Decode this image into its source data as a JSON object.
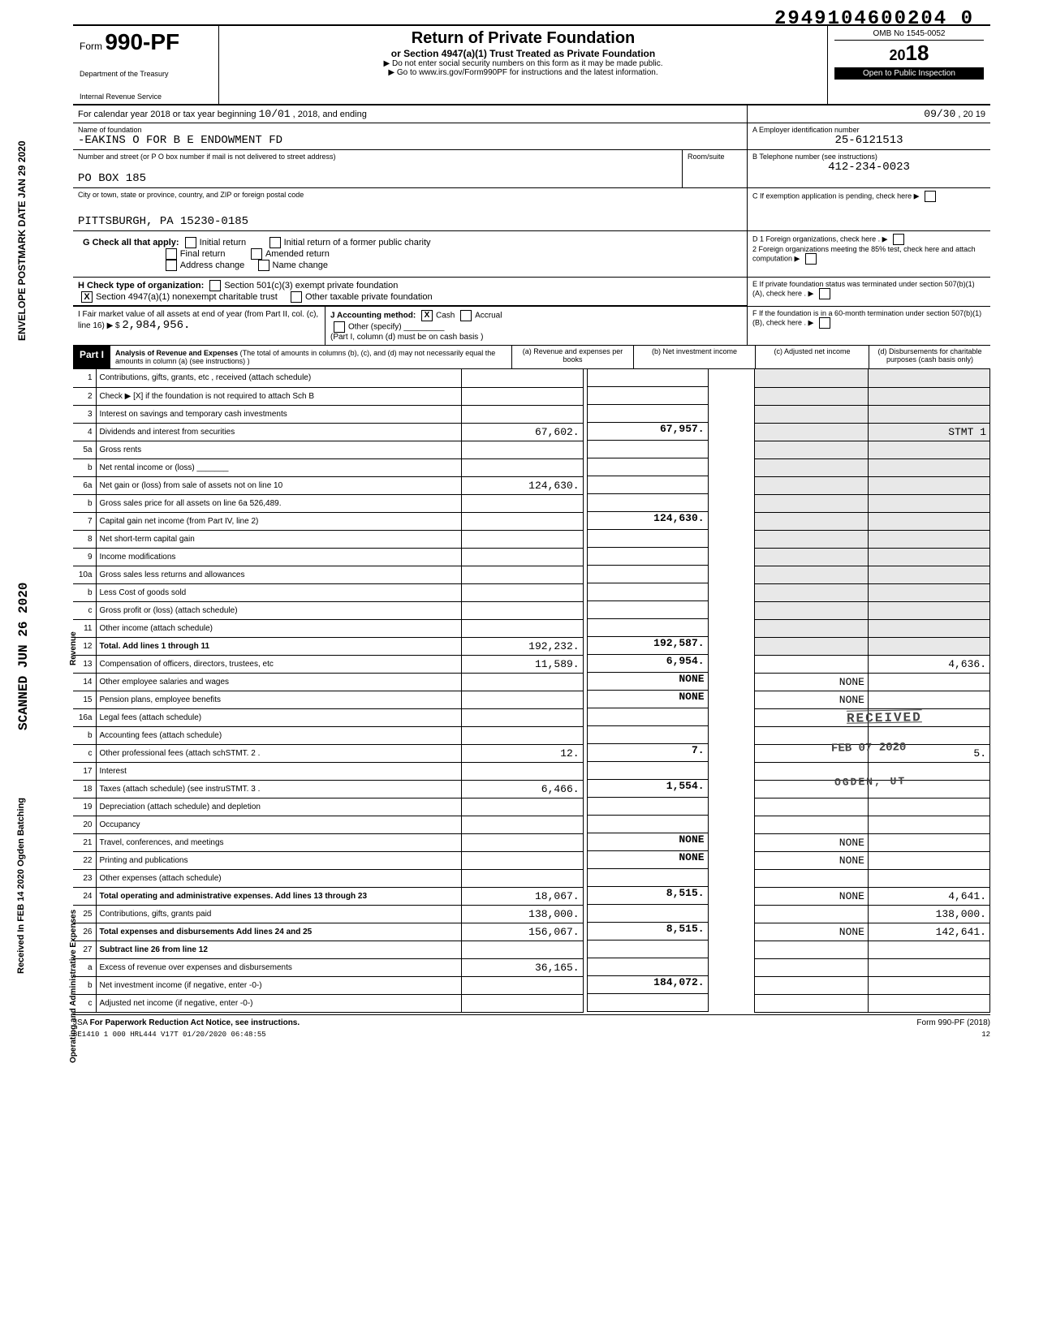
{
  "top_number": "2949104600204 0",
  "form": {
    "number": "990-PF",
    "prefix": "Form",
    "dept1": "Department of the Treasury",
    "dept2": "Internal Revenue Service",
    "title": "Return of Private Foundation",
    "subtitle": "or Section 4947(a)(1) Trust Treated as Private Foundation",
    "note1": "▶ Do not enter social security numbers on this form as it may be made public.",
    "note2": "▶ Go to www.irs.gov/Form990PF for instructions and the latest information.",
    "omb": "OMB No 1545-0052",
    "year": "2018",
    "year_prefix": "20",
    "open": "Open to Public Inspection"
  },
  "period": {
    "label": "For calendar year 2018 or tax year beginning",
    "begin": "10/01",
    "mid": ", 2018, and ending",
    "end": "09/30",
    "end_year": ", 20 19"
  },
  "foundation": {
    "name_label": "Name of foundation",
    "name": "-EAKINS O FOR B E ENDOWMENT FD",
    "addr_label": "Number and street (or P O box number if mail is not delivered to street address)",
    "room_label": "Room/suite",
    "po": "PO BOX 185",
    "city_label": "City or town, state or province, country, and ZIP or foreign postal code",
    "city": "PITTSBURGH, PA 15230-0185"
  },
  "ein": {
    "label_a": "A  Employer identification number",
    "value": "25-6121513",
    "label_b": "B  Telephone number (see instructions)",
    "phone": "412-234-0023",
    "label_c": "C  If exemption application is pending, check here",
    "label_d1": "D 1 Foreign organizations, check here .",
    "label_d2": "2 Foreign organizations meeting the 85% test, check here and attach computation",
    "label_e": "E  If private foundation status was terminated under section 507(b)(1)(A), check here .",
    "label_f": "F  If the foundation is in a 60-month termination under section 507(b)(1)(B), check here ."
  },
  "g": {
    "label": "G Check all that apply:",
    "opts": [
      "Initial return",
      "Final return",
      "Address change",
      "Initial return of a former public charity",
      "Amended return",
      "Name change"
    ]
  },
  "h": {
    "label": "H Check type of organization:",
    "o1": "Section 501(c)(3) exempt private foundation",
    "o2": "Section 4947(a)(1) nonexempt charitable trust",
    "o3": "Other taxable private foundation",
    "checked": "X"
  },
  "i": {
    "label": "I  Fair market value of all assets at end of year (from Part II, col. (c), line 16) ▶ $",
    "value": "2,984,956."
  },
  "j": {
    "label": "J Accounting method:",
    "cash": "Cash",
    "accrual": "Accrual",
    "other": "Other (specify)",
    "checked": "X",
    "note": "(Part I, column (d) must be on cash basis )"
  },
  "part1": {
    "label": "Part I",
    "title": "Analysis of Revenue and Expenses",
    "desc": "(The total of amounts in columns (b), (c), and (d) may not necessarily equal the amounts in column (a) (see instructions) )",
    "cols": {
      "a": "(a) Revenue and expenses per books",
      "b": "(b) Net investment income",
      "c": "(c) Adjusted net income",
      "d": "(d) Disbursements for charitable purposes (cash basis only)"
    }
  },
  "section_labels": {
    "revenue": "Revenue",
    "opexp": "Operating and Administrative Expenses"
  },
  "lines": [
    {
      "n": "1",
      "d": "Contributions, gifts, grants, etc , received (attach schedule)"
    },
    {
      "n": "2",
      "d": "Check ▶ [X] if the foundation is not required to attach Sch B"
    },
    {
      "n": "3",
      "d": "Interest on savings and temporary cash investments"
    },
    {
      "n": "4",
      "d": "Dividends and interest from securities",
      "a": "67,602.",
      "b": "67,957.",
      "dd": "STMT 1"
    },
    {
      "n": "5a",
      "d": "Gross rents"
    },
    {
      "n": "b",
      "d": "Net rental income or (loss) _______"
    },
    {
      "n": "6a",
      "d": "Net gain or (loss) from sale of assets not on line 10",
      "a": "124,630."
    },
    {
      "n": "b",
      "d": "Gross sales price for all assets on line 6a         526,489."
    },
    {
      "n": "7",
      "d": "Capital gain net income (from Part IV, line 2)",
      "b": "124,630."
    },
    {
      "n": "8",
      "d": "Net short-term capital gain"
    },
    {
      "n": "9",
      "d": "Income modifications"
    },
    {
      "n": "10a",
      "d": "Gross sales less returns and allowances"
    },
    {
      "n": "b",
      "d": "Less Cost of goods sold"
    },
    {
      "n": "c",
      "d": "Gross profit or (loss) (attach schedule)"
    },
    {
      "n": "11",
      "d": "Other income (attach schedule)"
    },
    {
      "n": "12",
      "d": "Total. Add lines 1 through 11",
      "a": "192,232.",
      "b": "192,587."
    },
    {
      "n": "13",
      "d": "Compensation of officers, directors, trustees, etc",
      "a": "11,589.",
      "b": "6,954.",
      "dd": "4,636."
    },
    {
      "n": "14",
      "d": "Other employee salaries and wages",
      "b": "NONE",
      "c": "NONE"
    },
    {
      "n": "15",
      "d": "Pension plans, employee benefits",
      "b": "NONE",
      "c": "NONE"
    },
    {
      "n": "16a",
      "d": "Legal fees (attach schedule)"
    },
    {
      "n": "b",
      "d": "Accounting fees (attach schedule)"
    },
    {
      "n": "c",
      "d": "Other professional fees (attach schSTMT. 2 .",
      "a": "12.",
      "b": "7.",
      "dd": "5."
    },
    {
      "n": "17",
      "d": "Interest"
    },
    {
      "n": "18",
      "d": "Taxes (attach schedule) (see instruSTMT. 3 .",
      "a": "6,466.",
      "b": "1,554."
    },
    {
      "n": "19",
      "d": "Depreciation (attach schedule) and depletion"
    },
    {
      "n": "20",
      "d": "Occupancy"
    },
    {
      "n": "21",
      "d": "Travel, conferences, and meetings",
      "b": "NONE",
      "c": "NONE"
    },
    {
      "n": "22",
      "d": "Printing and publications",
      "b": "NONE",
      "c": "NONE"
    },
    {
      "n": "23",
      "d": "Other expenses (attach schedule)"
    },
    {
      "n": "24",
      "d": "Total operating and administrative expenses. Add lines 13 through 23",
      "a": "18,067.",
      "b": "8,515.",
      "c": "NONE",
      "dd": "4,641."
    },
    {
      "n": "25",
      "d": "Contributions, gifts, grants paid",
      "a": "138,000.",
      "dd": "138,000."
    },
    {
      "n": "26",
      "d": "Total expenses and disbursements Add lines 24 and 25",
      "a": "156,067.",
      "b": "8,515.",
      "c": "NONE",
      "dd": "142,641."
    },
    {
      "n": "27",
      "d": "Subtract line 26 from line 12"
    },
    {
      "n": "a",
      "d": "Excess of revenue over expenses and disbursements",
      "a": "36,165."
    },
    {
      "n": "b",
      "d": "Net investment income (if negative, enter -0-)",
      "b": "184,072."
    },
    {
      "n": "c",
      "d": "Adjusted net income (if negative, enter -0-)"
    }
  ],
  "stamps": {
    "postmark": "ENVELOPE POSTMARK DATE JAN 29 2020",
    "scanned": "SCANNED JUN 26 2020",
    "received_in": "Received In FEB 14 2020 Ogden Batching",
    "received": "RECEIVED",
    "feb": "FEB 07 2020",
    "ogden": "OGDEN, UT"
  },
  "footer": {
    "jsa": "JSA",
    "paperwork": "For Paperwork Reduction Act Notice, see instructions.",
    "code": "8E1410 1 000",
    "stamp": "HRL444 V17T 01/20/2020 06:48:55",
    "form": "Form 990-PF (2018)",
    "page": "12"
  }
}
